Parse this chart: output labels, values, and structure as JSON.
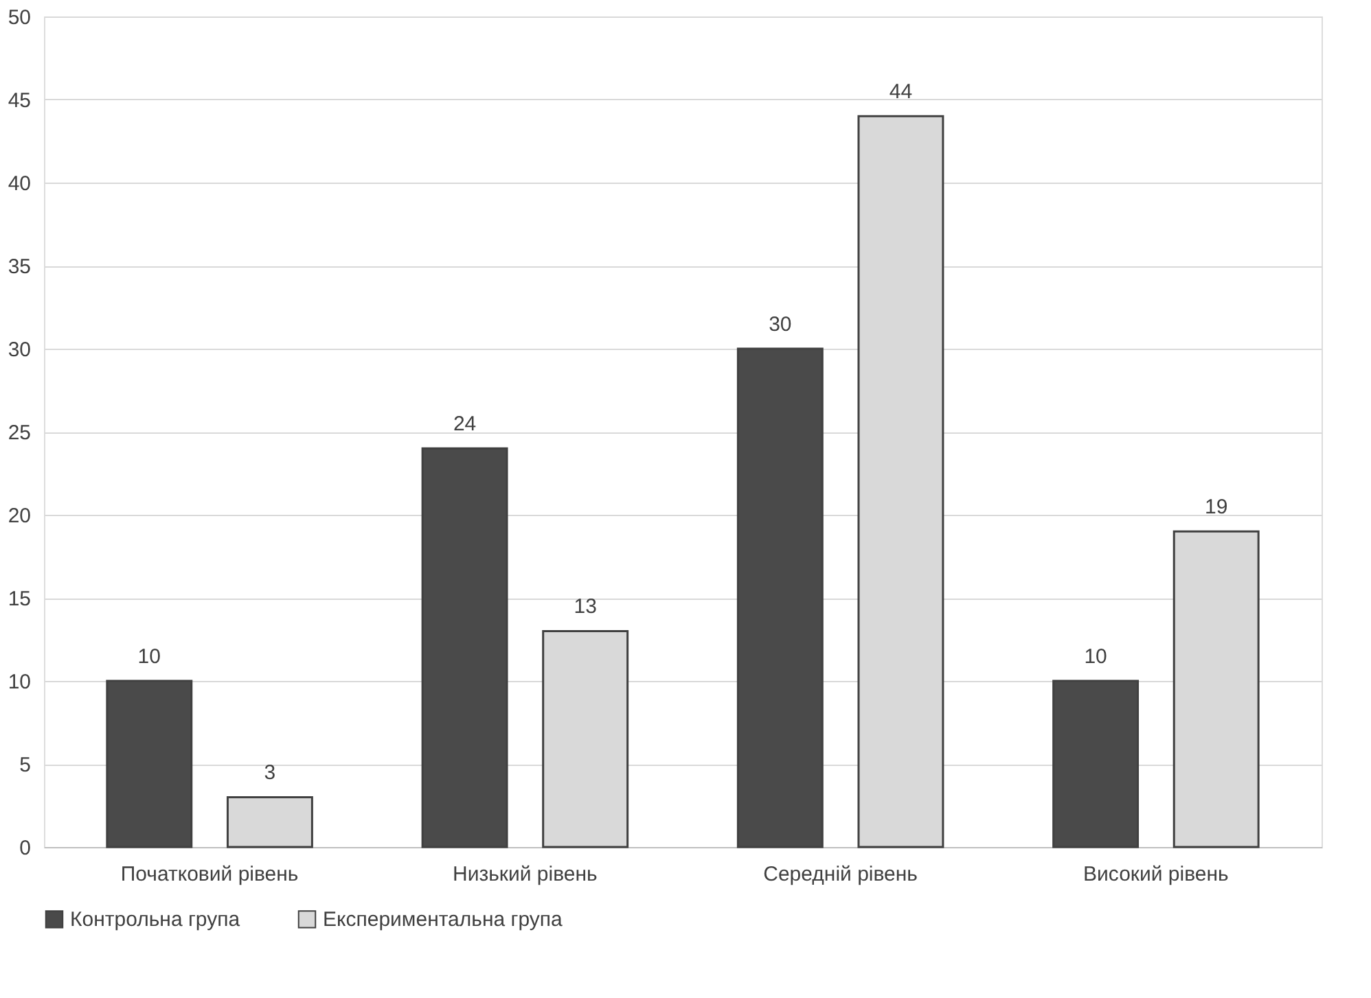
{
  "chart_data": {
    "type": "bar",
    "categories": [
      "Початковий рівень",
      "Низький рівень",
      "Середній рівень",
      "Високий рівень"
    ],
    "series": [
      {
        "name": "Контрольна група",
        "color": "#4a4a4a",
        "values": [
          10,
          24,
          30,
          10
        ]
      },
      {
        "name": "Експериментальна група",
        "color": "#d9d9d9",
        "values": [
          3,
          13,
          44,
          19
        ]
      }
    ],
    "ylim": [
      0,
      50
    ],
    "yticks": [
      0,
      5,
      10,
      15,
      20,
      25,
      30,
      35,
      40,
      45,
      50
    ],
    "grid": "y",
    "legend": "bottom",
    "data_labels": true
  }
}
